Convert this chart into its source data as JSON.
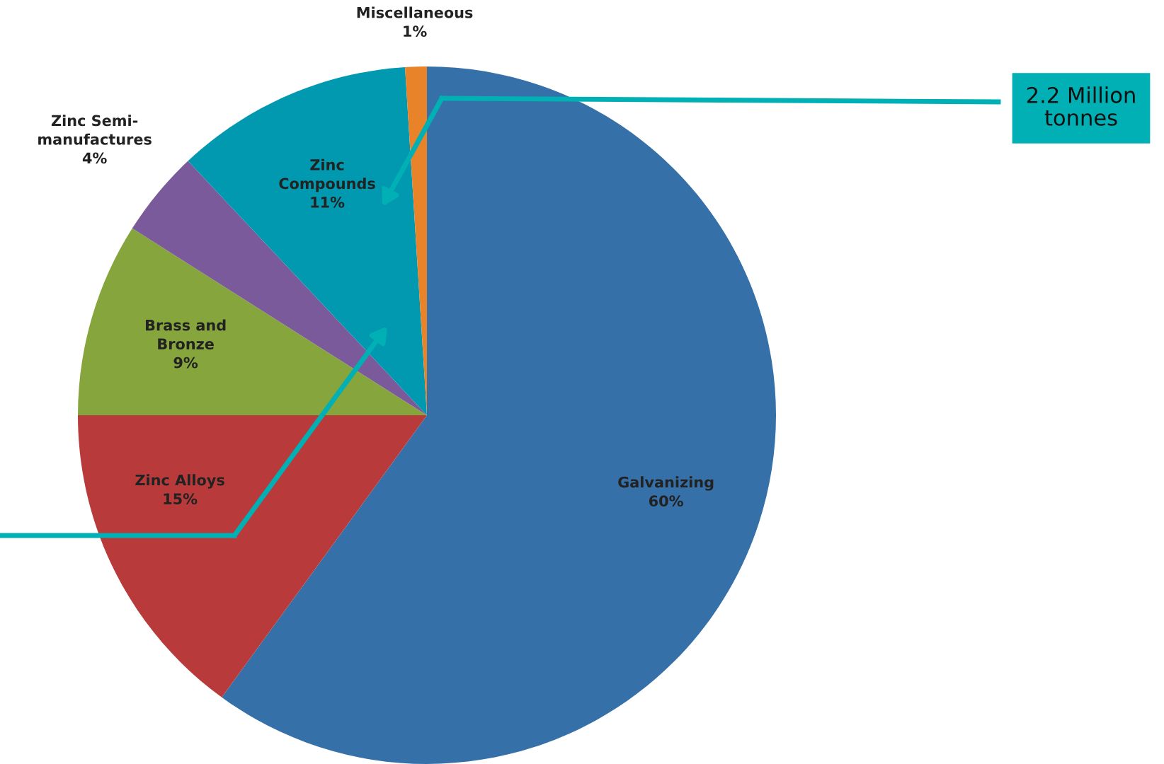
{
  "chart_data": {
    "type": "pie",
    "categories": [
      "Galvanizing",
      "Zinc Alloys",
      "Brass and Bronze",
      "Zinc Semi-manufactures",
      "Zinc Compounds",
      "Miscellaneous"
    ],
    "values": [
      60,
      15,
      9,
      4,
      11,
      1
    ],
    "value_labels": [
      "60%",
      "15%",
      "9%",
      "4%",
      "11%",
      "1%"
    ],
    "colors": [
      "#3670a8",
      "#b93a3a",
      "#86a53c",
      "#7a5a9a",
      "#0099b0",
      "#e8832a"
    ],
    "annotations": [
      "2.2 Million tonnes"
    ],
    "legend": false
  }
}
